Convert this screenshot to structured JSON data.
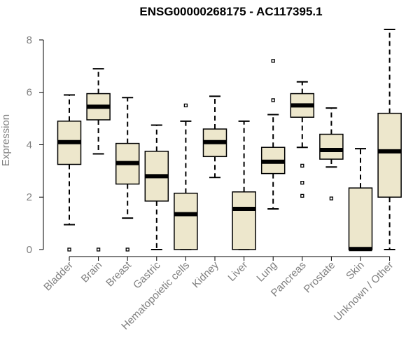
{
  "chart_data": {
    "type": "boxplot",
    "title": "ENSG00000268175 - AC117395.1",
    "xlabel": "",
    "ylabel": "Expression",
    "ylim": [
      0,
      8.4
    ],
    "yticks": [
      0,
      2,
      4,
      6,
      8
    ],
    "box_fill": "#ede7cc",
    "categories": [
      "Bladder",
      "Brain",
      "Breast",
      "Gastric",
      "Hematopoietic cells",
      "Kidney",
      "Liver",
      "Lung",
      "Pancreas",
      "Prostate",
      "Skin",
      "Unknown / Other"
    ],
    "series": [
      {
        "name": "Bladder",
        "whisker_low": 0.95,
        "q1": 3.25,
        "median": 4.1,
        "q3": 4.9,
        "whisker_high": 5.9,
        "outliers": [
          0
        ]
      },
      {
        "name": "Brain",
        "whisker_low": 3.65,
        "q1": 4.95,
        "median": 5.45,
        "q3": 5.95,
        "whisker_high": 6.9,
        "outliers": [
          0
        ]
      },
      {
        "name": "Breast",
        "whisker_low": 1.2,
        "q1": 2.5,
        "median": 3.3,
        "q3": 4.05,
        "whisker_high": 5.8,
        "outliers": [
          0
        ]
      },
      {
        "name": "Gastric",
        "whisker_low": 0,
        "q1": 1.85,
        "median": 2.8,
        "q3": 3.75,
        "whisker_high": 4.75,
        "outliers": []
      },
      {
        "name": "Hematopoietic cells",
        "whisker_low": 0,
        "q1": 0,
        "median": 1.35,
        "q3": 2.15,
        "whisker_high": 4.9,
        "outliers": [
          5.5
        ]
      },
      {
        "name": "Kidney",
        "whisker_low": 2.75,
        "q1": 3.55,
        "median": 4.1,
        "q3": 4.6,
        "whisker_high": 5.85,
        "outliers": []
      },
      {
        "name": "Liver",
        "whisker_low": 0,
        "q1": 0,
        "median": 1.55,
        "q3": 2.2,
        "whisker_high": 4.9,
        "outliers": []
      },
      {
        "name": "Lung",
        "whisker_low": 1.55,
        "q1": 2.9,
        "median": 3.35,
        "q3": 3.9,
        "whisker_high": 5.15,
        "outliers": [
          5.7,
          7.2
        ]
      },
      {
        "name": "Pancreas",
        "whisker_low": 3.9,
        "q1": 5.05,
        "median": 5.5,
        "q3": 5.95,
        "whisker_high": 6.4,
        "outliers": [
          3.2,
          2.55,
          2.05
        ]
      },
      {
        "name": "Prostate",
        "whisker_low": 3.15,
        "q1": 3.45,
        "median": 3.8,
        "q3": 4.4,
        "whisker_high": 5.4,
        "outliers": [
          1.95
        ]
      },
      {
        "name": "Skin",
        "whisker_low": 0,
        "q1": 0,
        "median": 0.02,
        "q3": 2.35,
        "whisker_high": 3.85,
        "outliers": []
      },
      {
        "name": "Unknown / Other",
        "whisker_low": 0,
        "q1": 2.0,
        "median": 3.75,
        "q3": 5.2,
        "whisker_high": 8.4,
        "outliers": []
      }
    ]
  }
}
